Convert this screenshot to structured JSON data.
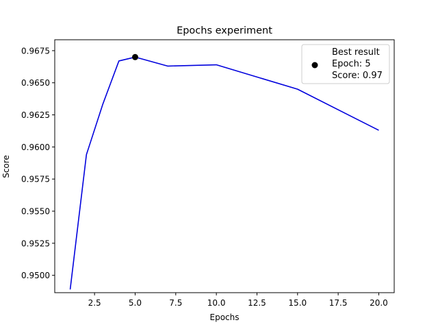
{
  "chart_data": {
    "type": "line",
    "title": "Epochs experiment",
    "xlabel": "Epochs",
    "ylabel": "Score",
    "xlim": [
      0.05,
      20.95
    ],
    "ylim": [
      0.94865,
      0.96835
    ],
    "xticks": [
      2.5,
      5.0,
      7.5,
      10.0,
      12.5,
      15.0,
      17.5,
      20.0
    ],
    "xtick_labels": [
      "2.5",
      "5.0",
      "7.5",
      "10.0",
      "12.5",
      "15.0",
      "17.5",
      "20.0"
    ],
    "yticks": [
      0.95,
      0.9525,
      0.955,
      0.9575,
      0.96,
      0.9625,
      0.965,
      0.9675
    ],
    "ytick_labels": [
      "0.9500",
      "0.9525",
      "0.9550",
      "0.9575",
      "0.9600",
      "0.9625",
      "0.9650",
      "0.9675"
    ],
    "grid": false,
    "series": [
      {
        "x": [
          1,
          2,
          3,
          4,
          5,
          7,
          10,
          15,
          20
        ],
        "y": [
          0.9489,
          0.9594,
          0.9633,
          0.9667,
          0.967,
          0.9663,
          0.9664,
          0.9645,
          0.9613
        ],
        "color": "#0000dd"
      }
    ],
    "highlight": {
      "x": 5,
      "y": 0.967,
      "color": "#000000",
      "legend_lines": [
        "Best result",
        "Epoch: 5",
        "Score: 0.97"
      ]
    },
    "legend_position": "top-right"
  }
}
